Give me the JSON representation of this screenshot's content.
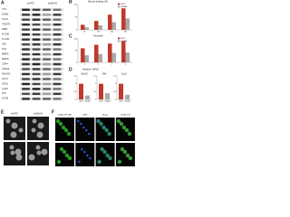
{
  "panels": {
    "a": {
      "letter": "A",
      "columns": [
        "shNTC",
        "shSNAI1"
      ],
      "rows": [
        "CTC",
        "SNAI1",
        "SLUG",
        "TWIST1",
        "ZEB1",
        "E-CAD",
        "N-CAD",
        "VIM",
        "FN1",
        "MMP2",
        "MMP9",
        "CD44",
        "CD133",
        "NANOG",
        "OCT4",
        "SOX2",
        "p-AKT",
        "AKT",
        "ACTB"
      ]
    },
    "b": {
      "letter": "B",
      "title": "Wound healing (%)",
      "categories": [
        "6h",
        "12h",
        "24h",
        "48h"
      ],
      "series": [
        {
          "name": "shNTC",
          "color": "#c0392b",
          "values": [
            20,
            35,
            60,
            85
          ]
        },
        {
          "name": "shSNAI1",
          "color": "#aaaaaa",
          "values": [
            10,
            18,
            30,
            45
          ]
        }
      ],
      "ylim": [
        0,
        100
      ],
      "yticks": [
        0,
        50,
        100
      ]
    },
    "c": {
      "letter": "C",
      "title": "Transwell",
      "categories": [
        "1",
        "2",
        "3",
        "4"
      ],
      "series": [
        {
          "name": "shNTC",
          "color": "#c0392b",
          "values": [
            60,
            75,
            80,
            90
          ]
        },
        {
          "name": "shSNAI1",
          "color": "#aaaaaa",
          "values": [
            30,
            35,
            40,
            42
          ]
        }
      ],
      "ylim": [
        0,
        100
      ],
      "yticks": [
        0,
        50,
        100
      ]
    },
    "d": {
      "letter": "D",
      "title": "Relative mRNA",
      "colors": [
        "#c0392b",
        "#aaaaaa"
      ],
      "charts": [
        {
          "title": "SNAI1",
          "categories": [
            "shNTC",
            "shSNAI1"
          ],
          "values": [
            1,
            0.25
          ],
          "ylim": [
            0,
            1.5
          ],
          "yticks": [
            0,
            0.5,
            1,
            1.5
          ]
        },
        {
          "title": "VIM",
          "categories": [
            "shNTC",
            "shSNAI1"
          ],
          "values": [
            1,
            0.4
          ],
          "ylim": [
            0,
            1.5
          ],
          "yticks": [
            0,
            0.5,
            1,
            1.5
          ]
        },
        {
          "title": "Sox2",
          "categories": [
            "shNTC",
            "shSNAI1"
          ],
          "values": [
            1,
            0.3
          ],
          "ylim": [
            0,
            1.5
          ],
          "yticks": [
            0,
            0.5,
            1,
            1.5
          ]
        }
      ]
    },
    "e": {
      "letter": "E",
      "columns": [
        "shNTC",
        "shSNAI1"
      ]
    },
    "f": {
      "letter": "F",
      "columns": [
        "SNAI1/PECAM",
        "DAPI",
        "Merge",
        "SM ACTIN"
      ]
    }
  }
}
